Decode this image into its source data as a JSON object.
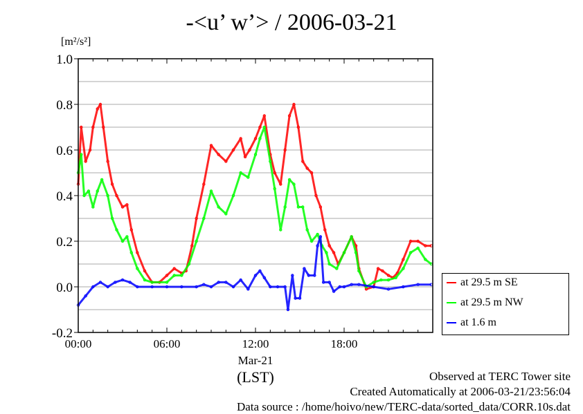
{
  "title": "-<u’ w’> / 2006-03-21",
  "unit_label": "[m²/s²]",
  "footer": {
    "observed": "Observed at TERC Tower site",
    "created": "Created Automatically at 2006-03-21/23:56:04",
    "source": "Data source : /home/hoivo/new/TERC-data/sorted_data/CORR.10s.dat"
  },
  "chart_data": {
    "type": "line",
    "title": "-<u’ w’> / 2006-03-21",
    "ylabel": "[m²/s²]",
    "xlabel": "(LST)",
    "x_date_label": "Mar-21",
    "xlim": [
      0,
      24
    ],
    "ylim": [
      -0.2,
      1.0
    ],
    "x_ticks": [
      {
        "value": 0,
        "label": "00:00"
      },
      {
        "value": 6,
        "label": "06:00"
      },
      {
        "value": 12,
        "label": "12:00"
      },
      {
        "value": 18,
        "label": "18:00"
      }
    ],
    "y_ticks": [
      {
        "value": -0.2,
        "label": "-0.2"
      },
      {
        "value": 0,
        "label": "0.0"
      },
      {
        "value": 0.2,
        "label": "0.2"
      },
      {
        "value": 0.4,
        "label": "0.4"
      },
      {
        "value": 0.6,
        "label": "0.6"
      },
      {
        "value": 0.8,
        "label": "0.8"
      },
      {
        "value": 1.0,
        "label": "1.0"
      }
    ],
    "grid": true,
    "legend_position": "right-bottom-outside",
    "series": [
      {
        "name": "at 29.5 m SE",
        "color": "#ff0000",
        "x": [
          0,
          0.2,
          0.5,
          0.8,
          1.0,
          1.3,
          1.5,
          1.7,
          2.0,
          2.3,
          2.6,
          3.0,
          3.3,
          3.6,
          4.0,
          4.5,
          5.0,
          5.5,
          6.0,
          6.5,
          7.0,
          7.3,
          7.7,
          8.0,
          8.5,
          9.0,
          9.5,
          10.0,
          10.5,
          11.0,
          11.3,
          11.6,
          12.0,
          12.3,
          12.6,
          13.0,
          13.3,
          13.7,
          14.0,
          14.3,
          14.6,
          14.9,
          15.2,
          15.5,
          15.8,
          16.1,
          16.4,
          16.7,
          17.0,
          17.3,
          17.6,
          18.0,
          18.5,
          18.8,
          19.0,
          19.5,
          20.0,
          20.3,
          20.6,
          21.0,
          21.3,
          21.6,
          22.0,
          22.5,
          23.0,
          23.5,
          23.9
        ],
        "y": [
          0.45,
          0.7,
          0.55,
          0.6,
          0.7,
          0.78,
          0.8,
          0.7,
          0.55,
          0.45,
          0.4,
          0.35,
          0.36,
          0.25,
          0.15,
          0.07,
          0.02,
          0.02,
          0.05,
          0.08,
          0.06,
          0.07,
          0.18,
          0.3,
          0.45,
          0.62,
          0.58,
          0.55,
          0.6,
          0.65,
          0.57,
          0.6,
          0.65,
          0.7,
          0.75,
          0.58,
          0.5,
          0.45,
          0.6,
          0.75,
          0.8,
          0.7,
          0.55,
          0.52,
          0.5,
          0.4,
          0.35,
          0.25,
          0.18,
          0.15,
          0.1,
          0.15,
          0.22,
          0.18,
          0.08,
          -0.01,
          0.0,
          0.08,
          0.07,
          0.05,
          0.04,
          0.06,
          0.12,
          0.2,
          0.2,
          0.18,
          0.18
        ]
      },
      {
        "name": "at 29.5 m NW",
        "color": "#00ff00",
        "x": [
          0,
          0.2,
          0.4,
          0.7,
          1.0,
          1.3,
          1.6,
          2.0,
          2.3,
          2.6,
          3.0,
          3.3,
          3.6,
          4.0,
          4.5,
          5.0,
          6.0,
          6.5,
          7.0,
          7.5,
          8.0,
          8.5,
          9.0,
          9.5,
          10.0,
          10.5,
          11.0,
          11.5,
          12.0,
          12.3,
          12.6,
          13.0,
          13.3,
          13.7,
          14.0,
          14.3,
          14.6,
          14.9,
          15.2,
          15.5,
          15.8,
          16.2,
          16.5,
          16.8,
          17.0,
          17.5,
          18.0,
          18.5,
          18.8,
          19.0,
          19.5,
          20.0,
          20.5,
          21.0,
          21.5,
          22.0,
          22.5,
          23.0,
          23.5,
          23.9
        ],
        "y": [
          0.5,
          0.58,
          0.4,
          0.42,
          0.35,
          0.42,
          0.47,
          0.4,
          0.3,
          0.25,
          0.2,
          0.22,
          0.15,
          0.08,
          0.03,
          0.02,
          0.02,
          0.05,
          0.05,
          0.1,
          0.2,
          0.3,
          0.42,
          0.35,
          0.32,
          0.4,
          0.5,
          0.48,
          0.58,
          0.65,
          0.7,
          0.55,
          0.43,
          0.25,
          0.35,
          0.47,
          0.45,
          0.35,
          0.35,
          0.25,
          0.2,
          0.23,
          0.18,
          0.15,
          0.1,
          0.08,
          0.15,
          0.22,
          0.15,
          0.07,
          0.0,
          0.02,
          0.03,
          0.03,
          0.04,
          0.08,
          0.15,
          0.17,
          0.12,
          0.1
        ]
      },
      {
        "name": "at 1.6 m",
        "color": "#0000ff",
        "x": [
          0,
          0.5,
          1.0,
          1.5,
          2.0,
          2.5,
          3.0,
          3.5,
          4.0,
          5.0,
          6.0,
          7.0,
          8.0,
          8.5,
          9.0,
          9.5,
          10.0,
          10.5,
          11.0,
          11.5,
          12.0,
          12.3,
          12.6,
          13.0,
          13.5,
          14.0,
          14.2,
          14.5,
          14.7,
          15.0,
          15.3,
          15.6,
          16.0,
          16.2,
          16.4,
          16.6,
          17.0,
          17.3,
          17.7,
          18.0,
          18.5,
          19.0,
          20.0,
          21.0,
          22.0,
          23.0,
          23.9
        ],
        "y": [
          -0.08,
          -0.04,
          0.0,
          0.02,
          0.0,
          0.02,
          0.03,
          0.02,
          0.0,
          0.0,
          0.0,
          0.0,
          0.0,
          0.01,
          0.0,
          0.02,
          0.02,
          0.0,
          0.03,
          -0.01,
          0.05,
          0.07,
          0.04,
          0.0,
          0.0,
          0.0,
          -0.1,
          0.05,
          -0.05,
          -0.05,
          0.08,
          0.05,
          0.05,
          0.18,
          0.22,
          0.02,
          0.02,
          -0.02,
          0.0,
          0.0,
          0.01,
          0.01,
          0.0,
          -0.01,
          0.0,
          0.01,
          0.01
        ]
      }
    ]
  }
}
